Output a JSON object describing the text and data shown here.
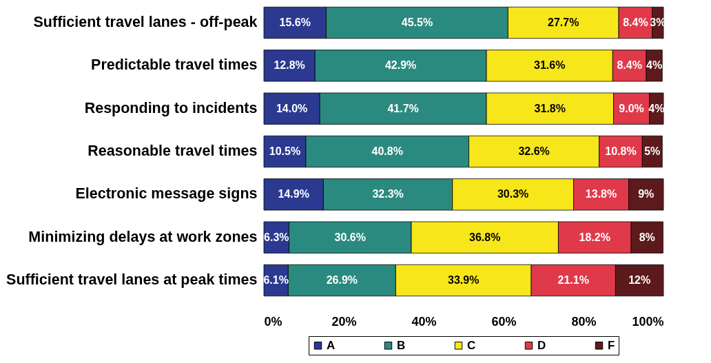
{
  "chart_data": {
    "type": "bar",
    "orientation": "horizontal",
    "stacked": true,
    "categories": [
      "Sufficient travel lanes - off-peak",
      "Predictable travel times",
      "Responding to incidents",
      "Reasonable travel times",
      "Electronic message signs",
      "Minimizing delays at work zones",
      "Sufficient travel lanes at peak times"
    ],
    "series": [
      {
        "name": "A",
        "color": "#2b3990",
        "values": [
          15.6,
          12.8,
          14.0,
          10.5,
          14.9,
          6.3,
          6.1
        ],
        "value_labels": [
          "15.6%",
          "12.8%",
          "14.0%",
          "10.5%",
          "14.9%",
          "6.3%",
          "6.1%"
        ]
      },
      {
        "name": "B",
        "color": "#2a8a80",
        "values": [
          45.5,
          42.9,
          41.7,
          40.8,
          32.3,
          30.6,
          26.9
        ],
        "value_labels": [
          "45.5%",
          "42.9%",
          "41.7%",
          "40.8%",
          "32.3%",
          "30.6%",
          "26.9%"
        ]
      },
      {
        "name": "C",
        "color": "#f7e619",
        "values": [
          27.7,
          31.6,
          31.8,
          32.6,
          30.3,
          36.8,
          33.9
        ],
        "value_labels": [
          "27.7%",
          "31.6%",
          "31.8%",
          "32.6%",
          "30.3%",
          "36.8%",
          "33.9%"
        ]
      },
      {
        "name": "D",
        "color": "#e0394a",
        "values": [
          8.4,
          8.4,
          9.0,
          10.8,
          13.8,
          18.2,
          21.1
        ],
        "value_labels": [
          "8.4%",
          "8.4%",
          "9.0%",
          "10.8%",
          "13.8%",
          "18.2%",
          "21.1%"
        ]
      },
      {
        "name": "F",
        "color": "#5c1a1c",
        "values": [
          2.8,
          4,
          3.5,
          5,
          8.7,
          8,
          12
        ],
        "value_labels": [
          "3%",
          "4%",
          "4%",
          "5%",
          "9%",
          "8%",
          "12%"
        ]
      }
    ],
    "xlim": [
      0,
      100
    ],
    "xticks": [
      {
        "value": 0,
        "label": "0%"
      },
      {
        "value": 20,
        "label": "20%"
      },
      {
        "value": 40,
        "label": "40%"
      },
      {
        "value": 60,
        "label": "60%"
      },
      {
        "value": 80,
        "label": "80%"
      },
      {
        "value": 100,
        "label": "100%"
      }
    ],
    "legend": "bottom",
    "grid": false
  }
}
